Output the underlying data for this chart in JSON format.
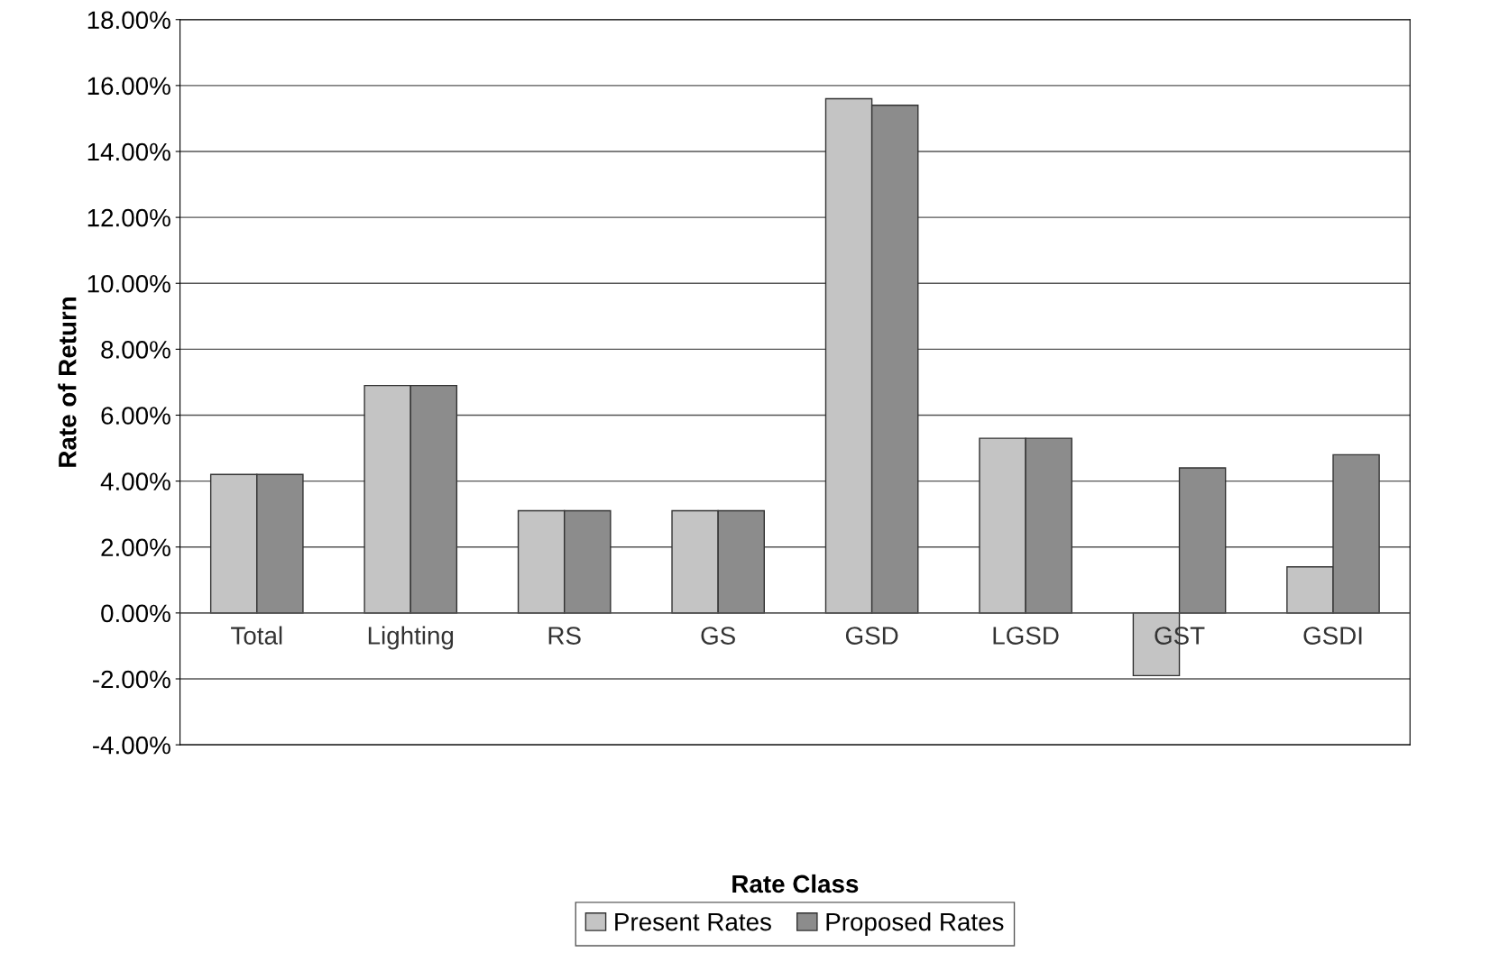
{
  "chart_data": {
    "type": "bar",
    "xlabel": "Rate Class",
    "ylabel": "Rate of Return",
    "categories": [
      "Total",
      "Lighting",
      "RS",
      "GS",
      "GSD",
      "LGSD",
      "GST",
      "GSDI"
    ],
    "series": [
      {
        "name": "Present Rates",
        "color": "#c4c4c4",
        "values": [
          4.2,
          6.9,
          3.1,
          3.1,
          15.6,
          5.3,
          -1.9,
          1.4
        ]
      },
      {
        "name": "Proposed Rates",
        "color": "#8c8c8c",
        "values": [
          4.2,
          6.9,
          3.1,
          3.1,
          15.4,
          5.3,
          4.4,
          4.8
        ]
      }
    ],
    "ylim": [
      -4,
      18
    ],
    "yticks": [
      {
        "value": -4,
        "label": "-4.00%"
      },
      {
        "value": -2,
        "label": "-2.00%"
      },
      {
        "value": 0,
        "label": "0.00%"
      },
      {
        "value": 2,
        "label": "2.00%"
      },
      {
        "value": 4,
        "label": "4.00%"
      },
      {
        "value": 6,
        "label": "6.00%"
      },
      {
        "value": 8,
        "label": "8.00%"
      },
      {
        "value": 10,
        "label": "10.00%"
      },
      {
        "value": 12,
        "label": "12.00%"
      },
      {
        "value": 14,
        "label": "14.00%"
      },
      {
        "value": 16,
        "label": "16.00%"
      },
      {
        "value": 18,
        "label": "18.00%"
      }
    ],
    "grid": "y",
    "legend": "bottom"
  }
}
